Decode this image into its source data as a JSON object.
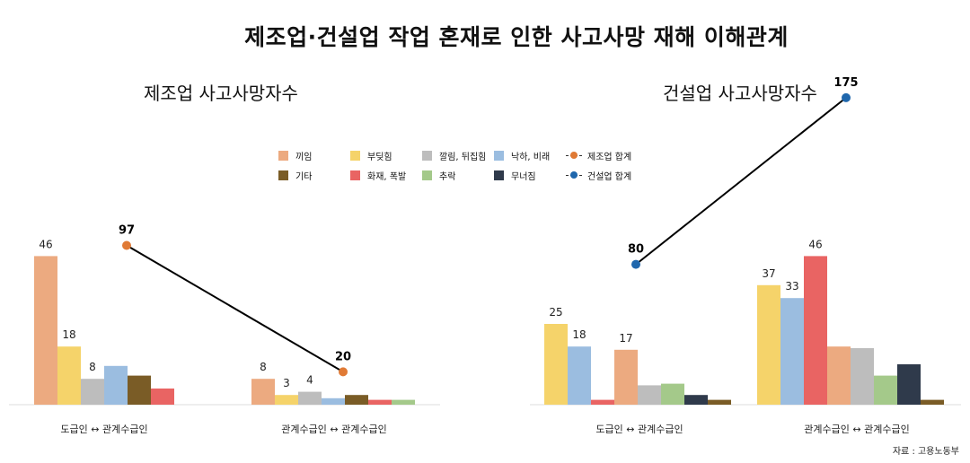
{
  "title": "제조업·건설업 작업 혼재로 인한 사고사망 재해 이해관계",
  "source": "자료 : 고용노동부",
  "colors": {
    "끼임": "#ecaa80",
    "부딪힘": "#f5d36a",
    "깔림, 뒤집힘": "#bdbdbd",
    "낙하, 비래": "#9bbde0",
    "기타": "#7a5c26",
    "화재, 폭발": "#e96463",
    "추락": "#a4c98a",
    "무너짐": "#2f3a4b",
    "제조업 합계": "#e07a35",
    "건설업 합계": "#1f67ad"
  },
  "legend": {
    "row1": [
      "끼임",
      "부딪힘",
      "깔림, 뒤집힘",
      "낙하, 비래",
      "제조업 합계"
    ],
    "row2": [
      "기타",
      "화재, 폭발",
      "추락",
      "무너짐",
      "건설업 합계"
    ]
  },
  "chart_data": [
    {
      "type": "bar",
      "title": "제조업 사고사망자수",
      "categories": [
        "도급인 ↔ 관계수급인",
        "관계수급인 ↔ 관계수급인"
      ],
      "series": [
        {
          "name": "끼임",
          "values": [
            46,
            8
          ]
        },
        {
          "name": "부딪힘",
          "values": [
            18,
            3
          ]
        },
        {
          "name": "깔림, 뒤집힘",
          "values": [
            8,
            4
          ]
        },
        {
          "name": "낙하, 비래",
          "values": [
            12,
            2
          ]
        },
        {
          "name": "기타",
          "values": [
            9,
            3
          ]
        },
        {
          "name": "화재, 폭발",
          "values": [
            5,
            1.5
          ]
        },
        {
          "name": "추락",
          "values": [
            null,
            1.5
          ]
        }
      ],
      "labels": [
        {
          "series": "끼임",
          "values": [
            "46",
            "8"
          ]
        },
        {
          "series": "부딪힘",
          "values": [
            "18",
            "3"
          ]
        },
        {
          "series": "깔림, 뒤집힘",
          "values": [
            "8",
            "4"
          ]
        }
      ],
      "total": {
        "name": "제조업 합계",
        "values": [
          97,
          20
        ]
      }
    },
    {
      "type": "bar",
      "title": "건설업 사고사망자수",
      "categories": [
        "도급인 ↔ 관계수급인",
        "관계수급인 ↔ 관계수급인"
      ],
      "series": [
        {
          "name": "부딪힘",
          "values": [
            25,
            37
          ]
        },
        {
          "name": "낙하, 비래",
          "values": [
            18,
            33
          ]
        },
        {
          "name": "화재, 폭발",
          "values": [
            1.5,
            46
          ]
        },
        {
          "name": "끼임",
          "values": [
            17,
            18
          ]
        },
        {
          "name": "깔림, 뒤집힘",
          "values": [
            6,
            17.5
          ]
        },
        {
          "name": "추락",
          "values": [
            6.5,
            9
          ]
        },
        {
          "name": "무너짐",
          "values": [
            3,
            12.5
          ]
        },
        {
          "name": "기타",
          "values": [
            1.5,
            1.5
          ]
        }
      ],
      "labels": [
        {
          "series": "부딪힘",
          "values": [
            "25",
            "37"
          ]
        },
        {
          "series": "낙하, 비래",
          "values": [
            "18",
            "33"
          ]
        },
        {
          "series": "화재, 폭발",
          "values": [
            "",
            "46"
          ]
        },
        {
          "series": "끼임",
          "values": [
            "17",
            ""
          ]
        }
      ],
      "total": {
        "name": "건설업 합계",
        "values": [
          80,
          175
        ]
      }
    }
  ]
}
